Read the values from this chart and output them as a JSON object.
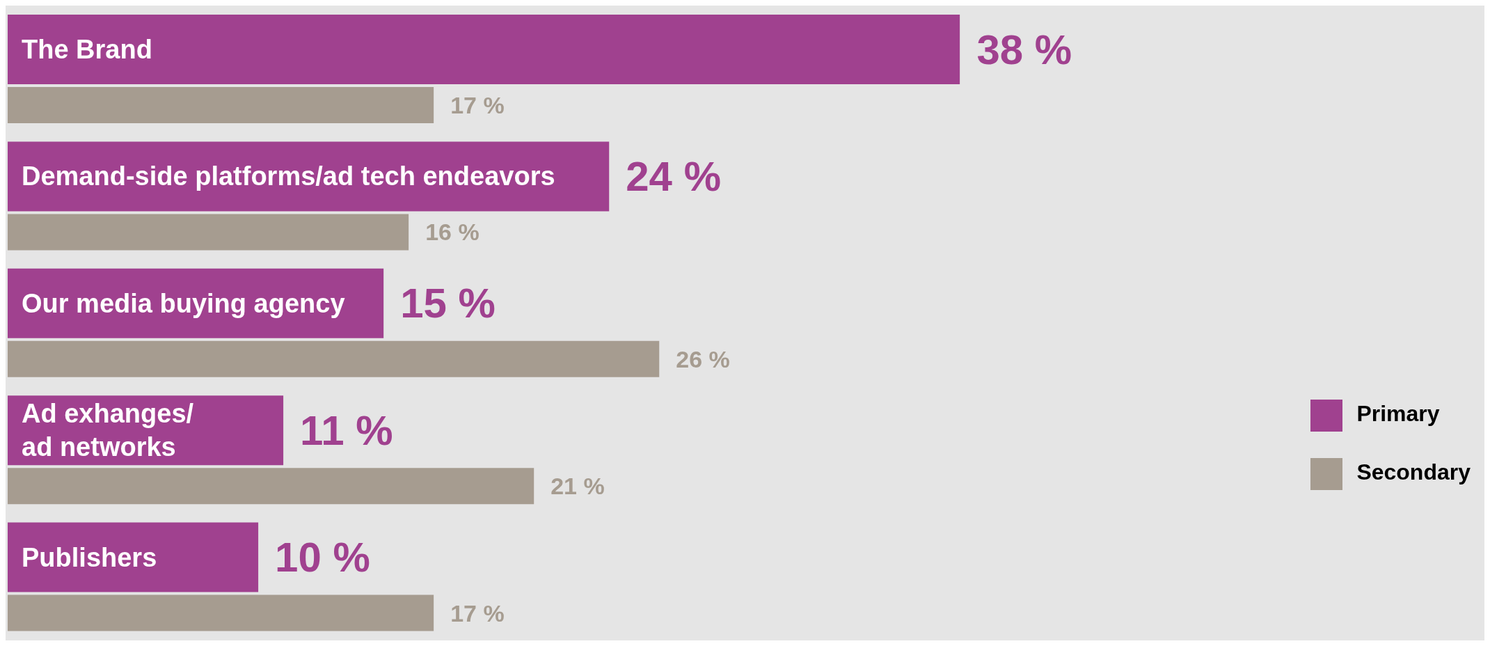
{
  "chart_data": {
    "type": "bar",
    "orientation": "horizontal",
    "categories": [
      "The Brand",
      "Demand-side platforms/ad tech endeavors",
      "Our media buying agency",
      "Ad exhanges/\nad networks",
      "Publishers"
    ],
    "series": [
      {
        "name": "Primary",
        "color": "#a0418f",
        "values": [
          38,
          24,
          15,
          11,
          10
        ],
        "value_labels": [
          "38 %",
          "24 %",
          "15 %",
          "11 %",
          "10 %"
        ]
      },
      {
        "name": "Secondary",
        "color": "#a69c90",
        "values": [
          17,
          16,
          26,
          21,
          17
        ],
        "value_labels": [
          "17 %",
          "16 %",
          "26 %",
          "21 %",
          "17 %"
        ]
      }
    ],
    "legend": "bottom right",
    "grid": false
  }
}
